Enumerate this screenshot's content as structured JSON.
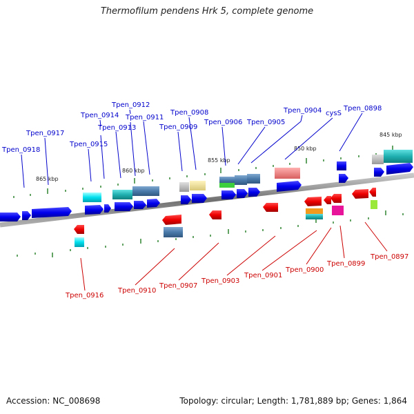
{
  "title": "Thermofilum pendens Hrk 5, complete genome",
  "footer": {
    "accession": "Accession: NC_008698",
    "topology": "Topology: circular; Length: 1,781,889 bp; Genes: 1,864"
  },
  "colors": {
    "forward": "#0a0af0",
    "reverse": "#ee1111",
    "backbone": "#7a7a7a",
    "tick": "#1f7a1f"
  },
  "kbp_markers": [
    "865 kbp",
    "860 kbp",
    "855 kbp",
    "850 kbp",
    "845 kbp"
  ],
  "genes_forward": [
    "Tpen_0918",
    "Tpen_0917",
    "Tpen_0915",
    "Tpen_0914",
    "Tpen_0913",
    "Tpen_0912",
    "Tpen_0911",
    "Tpen_0909",
    "Tpen_0908",
    "Tpen_0906",
    "Tpen_0905",
    "Tpen_0904",
    "cysS",
    "Tpen_0898"
  ],
  "genes_reverse": [
    "Tpen_0916",
    "Tpen_0910",
    "Tpen_0907",
    "Tpen_0903",
    "Tpen_0901",
    "Tpen_0900",
    "Tpen_0899",
    "Tpen_0897"
  ]
}
